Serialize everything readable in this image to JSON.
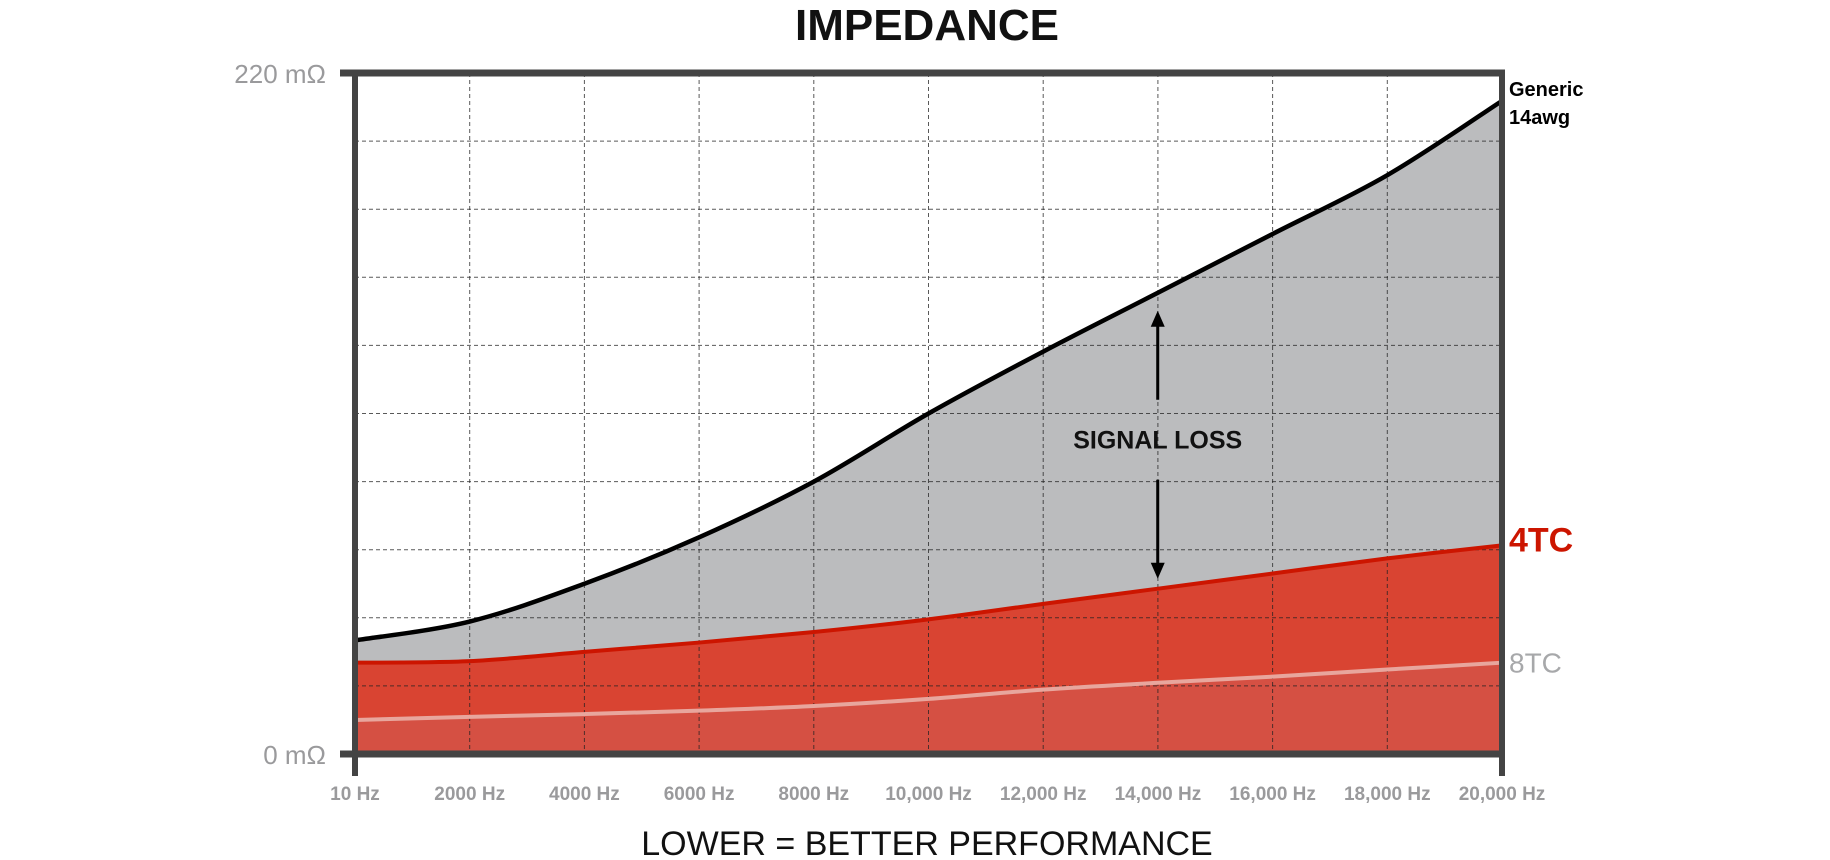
{
  "chart_data": {
    "type": "area",
    "title": "IMPEDANCE",
    "xlabel": "LOWER = BETTER PERFORMANCE",
    "ylabel": "",
    "x": [
      10,
      2000,
      4000,
      6000,
      8000,
      10000,
      12000,
      14000,
      16000,
      18000,
      20000
    ],
    "x_tick_labels": [
      "10 Hz",
      "2000 Hz",
      "4000 Hz",
      "6000 Hz",
      "8000 Hz",
      "10,000 Hz",
      "12,000 Hz",
      "14,000 Hz",
      "16,000 Hz",
      "18,000 Hz",
      "20,000 Hz"
    ],
    "y_tick_labels": [
      "0 mΩ",
      "220 mΩ"
    ],
    "xlim": [
      10,
      20000
    ],
    "ylim": [
      0,
      220
    ],
    "y_unit": "mΩ",
    "grid": true,
    "legend": "right (labels at line ends)",
    "series": [
      {
        "name": "Generic\n14awg",
        "label_lines": [
          "Generic",
          "14awg"
        ],
        "color": "#000000",
        "fill": "#bbbcbe",
        "values": [
          36.7,
          42.8,
          55,
          70,
          88,
          110,
          130,
          149,
          168,
          187,
          211
        ]
      },
      {
        "name": "4TC",
        "label_lines": [
          "4TC"
        ],
        "color": "#cc1500",
        "fill": "#d94432",
        "values": [
          29.5,
          30,
          33,
          36,
          39.4,
          43.5,
          48.5,
          53.4,
          58.3,
          63.2,
          67.4
        ]
      },
      {
        "name": "8TC",
        "label_lines": [
          "8TC"
        ],
        "color": "#e8a69d",
        "fill": "#d55043",
        "label_color": "#a7a8aa",
        "values": [
          11,
          12,
          12.9,
          14,
          15.5,
          17.8,
          20.8,
          23,
          25,
          27.3,
          29.5
        ]
      }
    ],
    "annotations": [
      {
        "text": "SIGNAL LOSS",
        "x": 14000,
        "type": "double-arrow between Generic 14awg and 4TC"
      }
    ]
  }
}
